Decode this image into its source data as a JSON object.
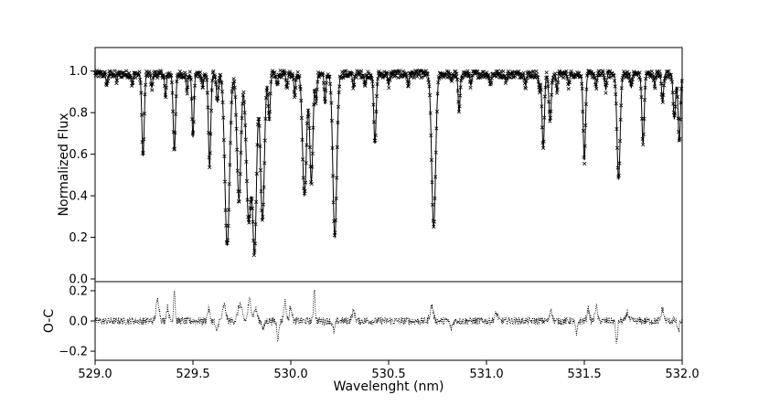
{
  "chart_data": [
    {
      "id": "top",
      "type": "scatter",
      "ylabel": "Normalized Flux",
      "xlim": [
        529.0,
        532.0
      ],
      "ylim": [
        0.0,
        1.1
      ],
      "yticks": [
        "0.0",
        "0.2",
        "0.4",
        "0.6",
        "0.8",
        "1.0"
      ],
      "series": [
        {
          "marker": "cross",
          "continuum": 0.985,
          "lines": [
            [
              529.06,
              0.93,
              0.004
            ],
            [
              529.11,
              0.95,
              0.003
            ],
            [
              529.19,
              0.93,
              0.004
            ],
            [
              529.245,
              0.59,
              0.006
            ],
            [
              529.29,
              0.92,
              0.004
            ],
            [
              529.36,
              0.87,
              0.004
            ],
            [
              529.405,
              0.62,
              0.006
            ],
            [
              529.47,
              0.9,
              0.004
            ],
            [
              529.5,
              0.68,
              0.005
            ],
            [
              529.55,
              0.92,
              0.004
            ],
            [
              529.585,
              0.54,
              0.006
            ],
            [
              529.625,
              0.85,
              0.005
            ],
            [
              529.675,
              0.16,
              0.012
            ],
            [
              529.735,
              0.38,
              0.01
            ],
            [
              529.785,
              0.28,
              0.012
            ],
            [
              529.815,
              0.15,
              0.01
            ],
            [
              529.855,
              0.28,
              0.01
            ],
            [
              529.89,
              0.76,
              0.005
            ],
            [
              529.93,
              0.93,
              0.004
            ],
            [
              529.98,
              0.92,
              0.004
            ],
            [
              530.02,
              0.88,
              0.004
            ],
            [
              530.07,
              0.4,
              0.01
            ],
            [
              530.105,
              0.47,
              0.008
            ],
            [
              530.13,
              0.85,
              0.004
            ],
            [
              530.175,
              0.84,
              0.004
            ],
            [
              530.225,
              0.2,
              0.01
            ],
            [
              530.32,
              0.92,
              0.004
            ],
            [
              530.38,
              0.93,
              0.004
            ],
            [
              530.43,
              0.65,
              0.006
            ],
            [
              530.5,
              0.93,
              0.004
            ],
            [
              530.6,
              0.93,
              0.004
            ],
            [
              530.73,
              0.25,
              0.01
            ],
            [
              530.82,
              0.95,
              0.004
            ],
            [
              530.86,
              0.8,
              0.005
            ],
            [
              530.92,
              0.93,
              0.004
            ],
            [
              531.02,
              0.93,
              0.004
            ],
            [
              531.1,
              0.95,
              0.004
            ],
            [
              531.2,
              0.93,
              0.004
            ],
            [
              531.27,
              0.9,
              0.004
            ],
            [
              531.29,
              0.63,
              0.006
            ],
            [
              531.325,
              0.76,
              0.006
            ],
            [
              531.36,
              0.9,
              0.004
            ],
            [
              531.42,
              0.93,
              0.004
            ],
            [
              531.5,
              0.57,
              0.006
            ],
            [
              531.56,
              0.92,
              0.004
            ],
            [
              531.61,
              0.91,
              0.004
            ],
            [
              531.675,
              0.48,
              0.008
            ],
            [
              531.74,
              0.92,
              0.004
            ],
            [
              531.8,
              0.65,
              0.006
            ],
            [
              531.86,
              0.93,
              0.004
            ],
            [
              531.9,
              0.85,
              0.005
            ],
            [
              531.96,
              0.77,
              0.006
            ],
            [
              531.985,
              0.66,
              0.006
            ]
          ]
        }
      ]
    },
    {
      "id": "bottom",
      "type": "line",
      "ylabel": "O-C",
      "xlabel": "Wavelenght (nm)",
      "xlim": [
        529.0,
        532.0
      ],
      "ylim": [
        -0.26,
        0.26
      ],
      "yticks": [
        "0.2",
        "0.0",
        "−0.2"
      ],
      "xticks": [
        "529.0",
        "529.5",
        "530.0",
        "530.5",
        "531.0",
        "531.5",
        "532.0"
      ],
      "series": [
        {
          "style": "dotted",
          "features": [
            [
              529.32,
              0.14,
              0.008
            ],
            [
              529.37,
              0.09,
              0.006
            ],
            [
              529.405,
              0.22,
              0.004
            ],
            [
              529.58,
              0.08,
              0.006
            ],
            [
              529.62,
              -0.07,
              0.006
            ],
            [
              529.66,
              0.1,
              0.008
            ],
            [
              529.74,
              0.11,
              0.01
            ],
            [
              529.79,
              0.14,
              0.008
            ],
            [
              529.82,
              0.08,
              0.008
            ],
            [
              529.86,
              -0.05,
              0.006
            ],
            [
              529.935,
              -0.11,
              0.005
            ],
            [
              529.97,
              0.13,
              0.006
            ],
            [
              530.0,
              0.1,
              0.006
            ],
            [
              530.12,
              0.22,
              0.004
            ],
            [
              530.22,
              -0.07,
              0.006
            ],
            [
              530.32,
              0.06,
              0.008
            ],
            [
              530.72,
              0.1,
              0.008
            ],
            [
              530.82,
              -0.05,
              0.006
            ],
            [
              531.05,
              0.05,
              0.008
            ],
            [
              531.33,
              0.08,
              0.006
            ],
            [
              531.46,
              -0.09,
              0.005
            ],
            [
              531.52,
              0.08,
              0.006
            ],
            [
              531.56,
              0.1,
              0.006
            ],
            [
              531.665,
              -0.14,
              0.005
            ],
            [
              531.72,
              0.06,
              0.006
            ],
            [
              531.9,
              0.08,
              0.006
            ],
            [
              531.98,
              -0.07,
              0.005
            ]
          ]
        }
      ]
    }
  ]
}
